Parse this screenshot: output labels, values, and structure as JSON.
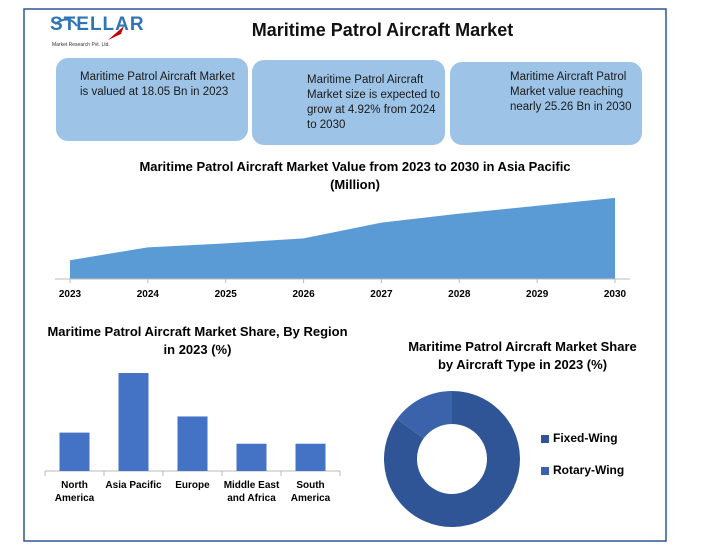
{
  "logo": {
    "name": "STELLAR",
    "tagline": "Market Research Pvt. Ltd."
  },
  "title": "Maritime Patrol Aircraft Market",
  "info_boxes": [
    "Maritime Patrol Aircraft Market is valued at 18.05 Bn in 2023",
    "Maritime Patrol Aircraft Market size is expected to grow at 4.92% from 2024 to 2030",
    "Maritime Aircraft Patrol Market value reaching nearly 25.26 Bn in 2030"
  ],
  "chart_data": [
    {
      "type": "area",
      "title": "Maritime Patrol Aircraft Market Value from 2023 to 2030 in Asia Pacific (Million)",
      "x": [
        2023,
        2024,
        2025,
        2026,
        2027,
        2028,
        2029,
        2030
      ],
      "values": [
        19,
        32,
        36,
        41,
        57,
        66,
        74,
        82
      ],
      "xlim": [
        2023,
        2030
      ],
      "xticks": [
        2023,
        2024,
        2025,
        2026,
        2027,
        2028,
        2029,
        2030
      ],
      "ylim": [
        0,
        100
      ],
      "color": "#5b9bd5"
    },
    {
      "type": "bar",
      "title": "Maritime Patrol Aircraft Market Share, By Region in 2023 (%)",
      "categories": [
        "North America",
        "Asia Pacific",
        "Europe",
        "Middle East and Africa",
        "South America"
      ],
      "values": [
        38,
        97,
        54,
        27,
        27
      ],
      "ylim": [
        0,
        100
      ],
      "color": "#4472c4"
    },
    {
      "type": "donut",
      "title": "Maritime Patrol Aircraft Market Share by Aircraft Type in 2023 (%)",
      "categories": [
        "Fixed-Wing",
        "Rotary-Wing"
      ],
      "values": [
        85,
        15
      ],
      "colors": [
        "#2f5597",
        "#3a63ab"
      ]
    }
  ]
}
